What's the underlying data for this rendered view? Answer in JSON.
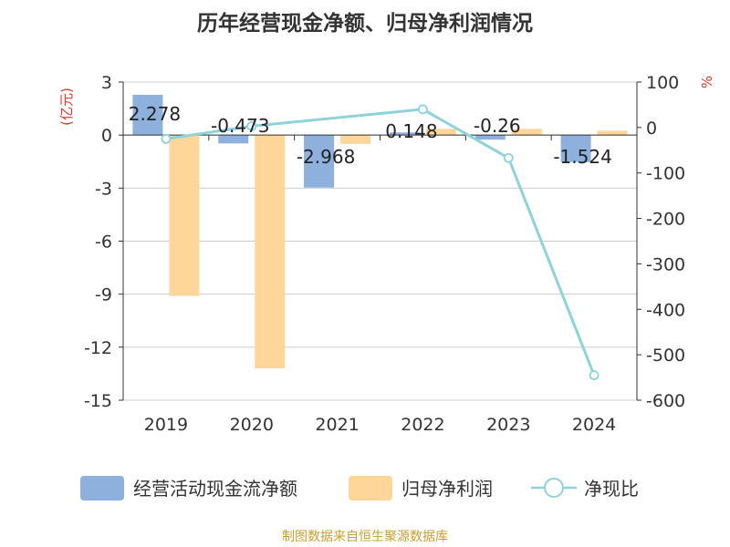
{
  "chart_data": {
    "type": "bar",
    "title": "历年经营现金净额、归母净利润情况",
    "categories": [
      "2019",
      "2020",
      "2021",
      "2022",
      "2023",
      "2024"
    ],
    "y_left": {
      "unit_label": "(亿元)",
      "ticks": [
        3,
        0,
        -3,
        -6,
        -9,
        -12,
        -15
      ],
      "ylim": [
        -15,
        3
      ]
    },
    "y_right": {
      "unit_label": "%",
      "ticks": [
        100,
        0,
        -100,
        -200,
        -300,
        -400,
        -500,
        -600
      ],
      "ylim": [
        -600,
        100
      ]
    },
    "series": [
      {
        "name": "经营活动现金流净额",
        "type": "bar",
        "axis": "left",
        "color": "#8eb0dc",
        "values": [
          2.278,
          -0.473,
          -2.968,
          0.148,
          -0.26,
          -1.524
        ],
        "labels": [
          "2.278",
          "-0.473",
          "-2.968",
          "0.148",
          "-0.26",
          "-1.524"
        ]
      },
      {
        "name": "归母净利润",
        "type": "bar",
        "axis": "left",
        "color": "#ffd699",
        "values": [
          -9.1,
          -13.2,
          -0.5,
          0.35,
          0.35,
          0.25
        ]
      },
      {
        "name": "净现比",
        "type": "line",
        "axis": "right",
        "color": "#8dd3d9",
        "values": [
          -25,
          3,
          null,
          40,
          -67,
          -545
        ]
      }
    ],
    "grid": true,
    "legend_position": "bottom"
  },
  "source": "制图数据来自恒生聚源数据库",
  "colors": {
    "axis_unit": "#e0382d",
    "source_text": "#c8a030",
    "grid": "#cccccc",
    "axis": "#333333"
  }
}
